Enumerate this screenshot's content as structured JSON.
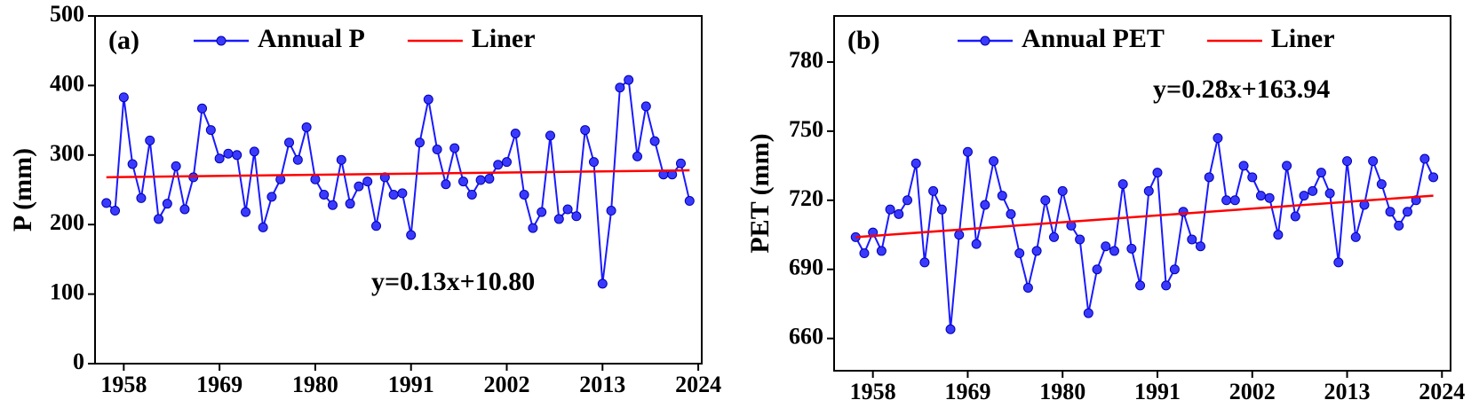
{
  "chart_data": [
    {
      "type": "line",
      "panel_label": "(a)",
      "y_label": "P (mm)",
      "annotation": "y=0.13x+10.80",
      "x": [
        1956,
        1957,
        1958,
        1959,
        1960,
        1961,
        1962,
        1963,
        1964,
        1965,
        1966,
        1967,
        1968,
        1969,
        1970,
        1971,
        1972,
        1973,
        1974,
        1975,
        1976,
        1977,
        1978,
        1979,
        1980,
        1981,
        1982,
        1983,
        1984,
        1985,
        1986,
        1987,
        1988,
        1989,
        1990,
        1991,
        1992,
        1993,
        1994,
        1995,
        1996,
        1997,
        1998,
        1999,
        2000,
        2001,
        2002,
        2003,
        2004,
        2005,
        2006,
        2007,
        2008,
        2009,
        2010,
        2011,
        2012,
        2013,
        2014,
        2015,
        2016,
        2017,
        2018,
        2019,
        2020,
        2021,
        2022,
        2023
      ],
      "series": [
        {
          "name": "Annual P",
          "color": "#1a1aff",
          "values": [
            231,
            220,
            383,
            287,
            238,
            321,
            208,
            230,
            284,
            222,
            268,
            367,
            336,
            295,
            302,
            300,
            218,
            305,
            196,
            240,
            265,
            318,
            293,
            340,
            265,
            243,
            228,
            293,
            230,
            255,
            262,
            198,
            268,
            243,
            245,
            185,
            318,
            380,
            308,
            258,
            310,
            262,
            243,
            264,
            266,
            286,
            290,
            331,
            243,
            195,
            218,
            328,
            208,
            222,
            212,
            336,
            290,
            115,
            220,
            397,
            408,
            298,
            370,
            320,
            272,
            272,
            288,
            234
          ]
        },
        {
          "name": "Liner",
          "color": "#ff0000",
          "x": [
            1956,
            2023
          ],
          "values": [
            268,
            278
          ]
        }
      ],
      "xlim": [
        1954.7,
        2024.4
      ],
      "xticks": [
        1958,
        1969,
        1980,
        1991,
        2002,
        2013,
        2024
      ],
      "ylim": [
        0,
        500
      ],
      "yticks": [
        0,
        100,
        200,
        300,
        400,
        500
      ]
    },
    {
      "type": "line",
      "panel_label": "(b)",
      "y_label": "PET (mm)",
      "annotation": "y=0.28x+163.94",
      "x": [
        1956,
        1957,
        1958,
        1959,
        1960,
        1961,
        1962,
        1963,
        1964,
        1965,
        1966,
        1967,
        1968,
        1969,
        1970,
        1971,
        1972,
        1973,
        1974,
        1975,
        1976,
        1977,
        1978,
        1979,
        1980,
        1981,
        1982,
        1983,
        1984,
        1985,
        1986,
        1987,
        1988,
        1989,
        1990,
        1991,
        1992,
        1993,
        1994,
        1995,
        1996,
        1997,
        1998,
        1999,
        2000,
        2001,
        2002,
        2003,
        2004,
        2005,
        2006,
        2007,
        2008,
        2009,
        2010,
        2011,
        2012,
        2013,
        2014,
        2015,
        2016,
        2017,
        2018,
        2019,
        2020,
        2021,
        2022,
        2023
      ],
      "series": [
        {
          "name": "Annual PET",
          "color": "#1a1aff",
          "values": [
            704,
            697,
            706,
            698,
            716,
            714,
            720,
            736,
            693,
            724,
            716,
            664,
            705,
            741,
            701,
            718,
            737,
            722,
            714,
            697,
            682,
            698,
            720,
            704,
            724,
            709,
            703,
            671,
            690,
            700,
            698,
            727,
            699,
            683,
            724,
            732,
            683,
            690,
            715,
            703,
            700,
            730,
            747,
            720,
            720,
            735,
            730,
            722,
            721,
            705,
            735,
            713,
            722,
            724,
            732,
            723,
            693,
            737,
            704,
            718,
            737,
            727,
            715,
            709,
            715,
            720,
            738,
            730
          ]
        },
        {
          "name": "Liner",
          "color": "#ff0000",
          "x": [
            1956,
            2023
          ],
          "values": [
            704,
            722
          ]
        }
      ],
      "xlim": [
        1953.5,
        2025
      ],
      "xticks": [
        1958,
        1969,
        1980,
        1991,
        2002,
        2013,
        2024
      ],
      "ylim": [
        646,
        800
      ],
      "yticks": [
        660,
        690,
        720,
        750,
        780
      ]
    }
  ]
}
